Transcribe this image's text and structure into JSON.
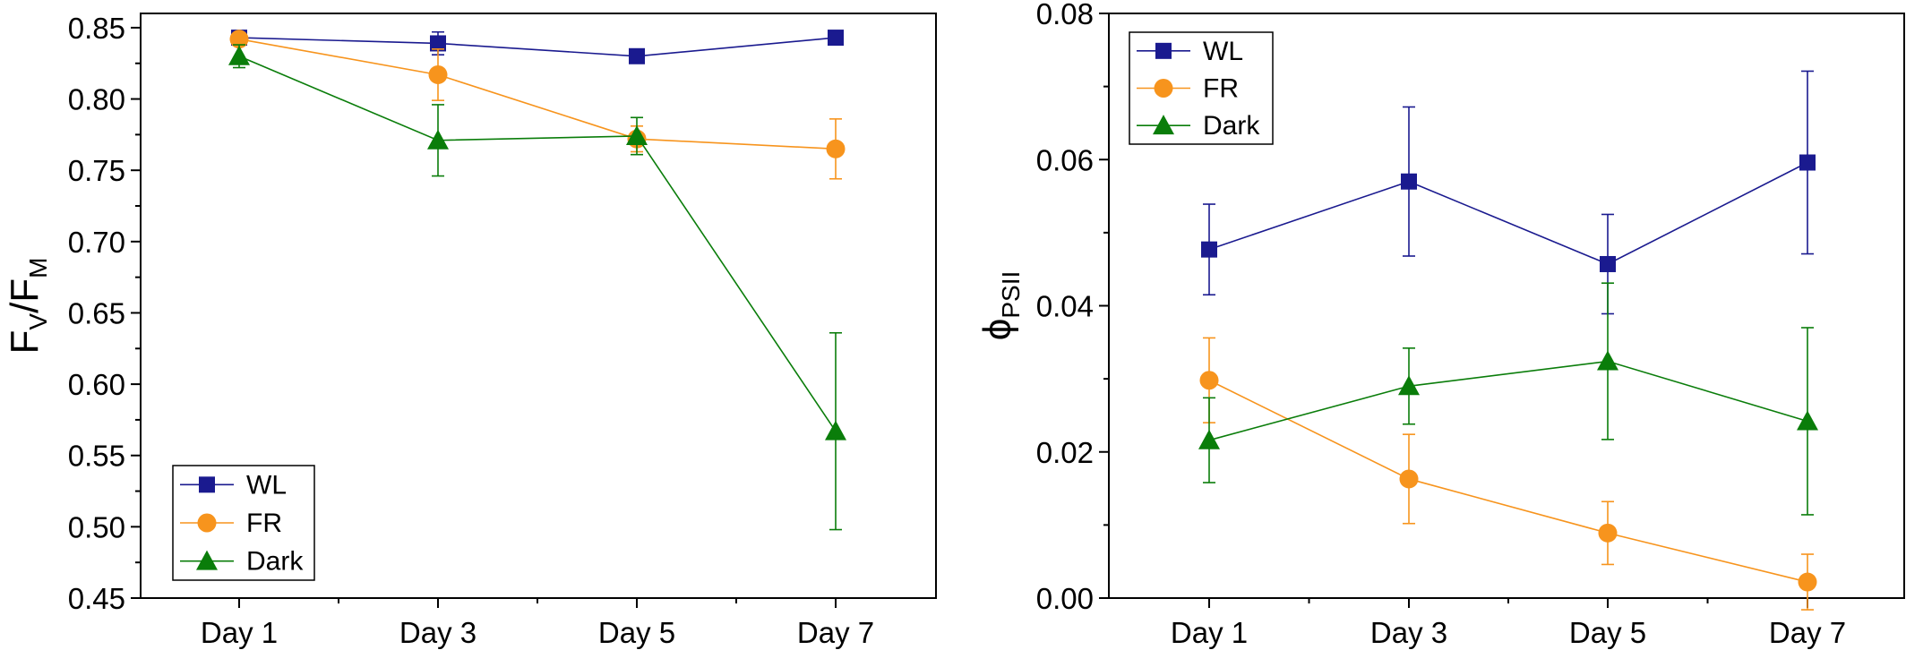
{
  "chart_data": [
    {
      "type": "line",
      "title": "",
      "xlabel": "",
      "ylabel": "FV/FM",
      "ylabel_parts": {
        "main1": "F",
        "sub1": "V",
        "sep": "/",
        "main2": "F",
        "sub2": "M"
      },
      "categories": [
        "Day 1",
        "Day 3",
        "Day 5",
        "Day 7"
      ],
      "ylim": [
        0.45,
        0.86
      ],
      "yticks": [
        "0.45",
        "0.50",
        "0.55",
        "0.60",
        "0.65",
        "0.70",
        "0.75",
        "0.80",
        "0.85"
      ],
      "grid": false,
      "legend_position": "bottom-left",
      "series": [
        {
          "name": "WL",
          "color": "#1a1a8f",
          "marker": "square",
          "values": [
            0.843,
            0.839,
            0.83,
            0.843
          ],
          "errors": [
            0.002,
            0.008,
            0.002,
            0.002
          ]
        },
        {
          "name": "FR",
          "color": "#f7941d",
          "marker": "circle",
          "values": [
            0.842,
            0.817,
            0.772,
            0.765
          ],
          "errors": [
            0.002,
            0.018,
            0.009,
            0.021
          ]
        },
        {
          "name": "Dark",
          "color": "#0a7d0a",
          "marker": "triangle",
          "values": [
            0.83,
            0.771,
            0.774,
            0.567
          ],
          "errors": [
            0.008,
            0.025,
            0.013,
            0.069
          ]
        }
      ]
    },
    {
      "type": "line",
      "title": "",
      "xlabel": "",
      "ylabel": "ΦPSII",
      "ylabel_parts": {
        "main1": "ϕ",
        "sub1": "PSII"
      },
      "categories": [
        "Day 1",
        "Day 3",
        "Day 5",
        "Day 7"
      ],
      "ylim": [
        0.0,
        0.08
      ],
      "yticks": [
        "0.00",
        "0.02",
        "0.04",
        "0.06",
        "0.08"
      ],
      "grid": false,
      "legend_position": "top-left",
      "series": [
        {
          "name": "WL",
          "color": "#1a1a8f",
          "marker": "square",
          "values": [
            0.0477,
            0.057,
            0.0457,
            0.0596
          ],
          "errors": [
            0.0062,
            0.0102,
            0.0068,
            0.0125
          ]
        },
        {
          "name": "FR",
          "color": "#f7941d",
          "marker": "circle",
          "values": [
            0.0298,
            0.0163,
            0.0089,
            0.0022
          ],
          "errors": [
            0.0058,
            0.0061,
            0.0043,
            0.0038
          ]
        },
        {
          "name": "Dark",
          "color": "#0a7d0a",
          "marker": "triangle",
          "values": [
            0.0216,
            0.029,
            0.0324,
            0.0242
          ],
          "errors": [
            0.0058,
            0.0052,
            0.0107,
            0.0128
          ]
        }
      ]
    }
  ]
}
